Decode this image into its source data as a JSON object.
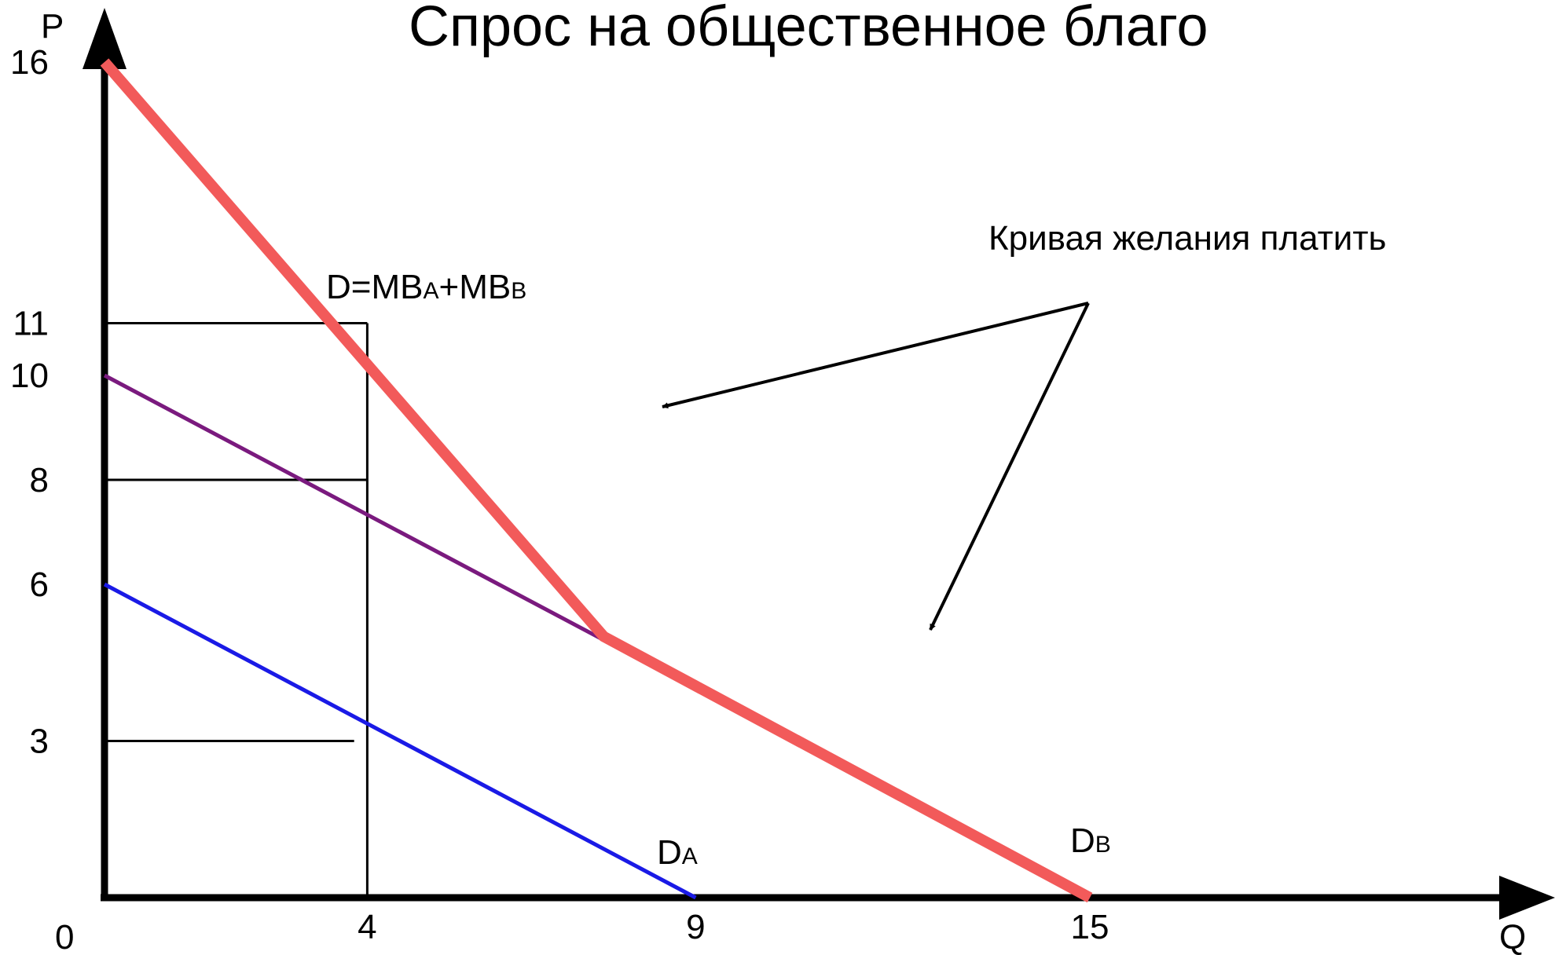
{
  "chart_data": {
    "type": "line",
    "title": "Спрос на общественное благо",
    "xlabel": "Q",
    "ylabel": "P",
    "origin_label": "0",
    "xlim": [
      0,
      18.5
    ],
    "ylim": [
      0,
      16.8
    ],
    "x_ticks": [
      4,
      9,
      15
    ],
    "y_ticks": [
      3,
      6,
      8,
      10,
      11,
      16
    ],
    "grid": false,
    "series": [
      {
        "name": "D=MBA+MBB",
        "color": "#f25a5a",
        "points": [
          [
            0,
            16
          ],
          [
            7.6,
            5
          ],
          [
            15,
            0
          ]
        ]
      },
      {
        "name": "DB",
        "color": "#7a1a7e",
        "points": [
          [
            0,
            10
          ],
          [
            15,
            0
          ]
        ]
      },
      {
        "name": "DA",
        "color": "#1a1ae6",
        "points": [
          [
            0,
            6
          ],
          [
            9,
            0
          ]
        ]
      }
    ],
    "reference_lines": {
      "horizontal": [
        {
          "y": 11,
          "x_to": 4
        },
        {
          "y": 8,
          "x_to": 4
        },
        {
          "y": 3,
          "x_to": 3.8
        }
      ],
      "vertical": [
        {
          "x": 4,
          "y_to": 11
        }
      ]
    },
    "curve_labels": {
      "sum": {
        "main": "D=MB",
        "sub_a": "A",
        "plus": "+MB",
        "sub_b": "B"
      },
      "da": {
        "main": "D",
        "sub": "A"
      },
      "db": {
        "main": "D",
        "sub": "B"
      }
    },
    "annotation": {
      "text": "Кривая желания платить",
      "arrow_count": 2
    }
  }
}
